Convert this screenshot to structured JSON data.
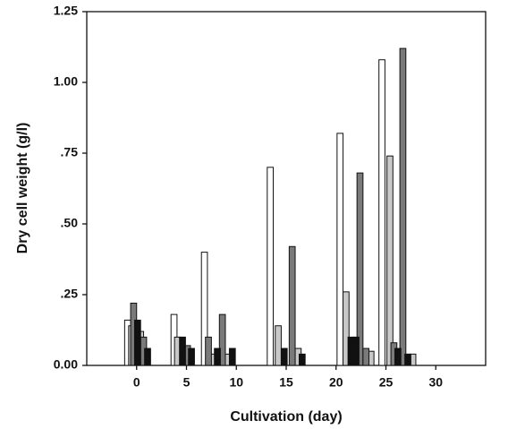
{
  "chart_data": {
    "type": "bar",
    "x_label": "Cultivation (day)",
    "y_label": "Dry cell weight (g/l)",
    "xlim": [
      -5,
      35
    ],
    "ylim": [
      0,
      1.25
    ],
    "xticks": [
      0,
      5,
      10,
      15,
      20,
      25,
      30
    ],
    "yticks": [
      {
        "value": 0,
        "label": "0.00"
      },
      {
        "value": 0.25,
        "label": ".25"
      },
      {
        "value": 0.5,
        "label": ".50"
      },
      {
        "value": 0.75,
        "label": ".75"
      },
      {
        "value": 1,
        "label": "1.00"
      },
      {
        "value": 1.25,
        "label": "1.25"
      }
    ],
    "bar_width": 0.6,
    "series": [
      {
        "color": "#ffffff",
        "x": [
          -0.9,
          3.75,
          6.8,
          13.4,
          20.4,
          24.6
        ],
        "values": [
          0.16,
          0.18,
          0.4,
          0.7,
          0.82,
          1.08
        ]
      },
      {
        "color": "#c8c8c8",
        "x": [
          -0.5,
          0.4,
          4.1,
          7.7,
          9.1,
          14.2,
          16.2,
          21.0,
          23.5,
          25.4,
          27.7
        ],
        "values": [
          0.14,
          0.12,
          0.1,
          0.04,
          0.04,
          0.14,
          0.06,
          0.26,
          0.05,
          0.74,
          0.04
        ]
      },
      {
        "color": "#7a7a7a",
        "x": [
          -0.3,
          0.7,
          5.1,
          7.2,
          8.6,
          15.6,
          22.4,
          23.0,
          25.8,
          26.7
        ],
        "values": [
          0.22,
          0.1,
          0.07,
          0.1,
          0.18,
          0.42,
          0.68,
          0.06,
          0.08,
          1.12
        ]
      },
      {
        "color": "#111111",
        "x": [
          0.1,
          1.1,
          4.6,
          5.5,
          8.1,
          9.6,
          14.8,
          16.6,
          21.5,
          22.0,
          26.2,
          27.2
        ],
        "values": [
          0.16,
          0.06,
          0.1,
          0.06,
          0.06,
          0.06,
          0.06,
          0.04,
          0.1,
          0.1,
          0.06,
          0.04
        ]
      }
    ]
  }
}
